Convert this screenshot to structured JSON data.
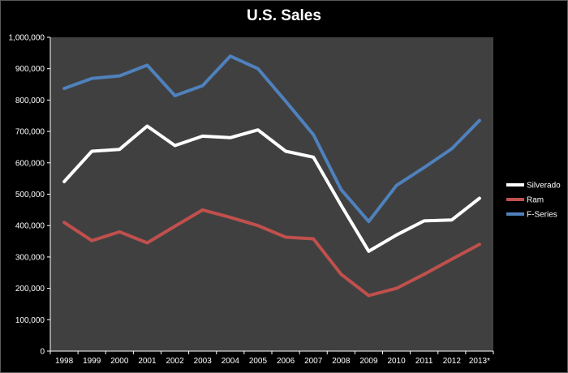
{
  "chart_data": {
    "type": "line",
    "title": "U.S. Sales",
    "xlabel": "",
    "ylabel": "",
    "categories": [
      "1998",
      "1999",
      "2000",
      "2001",
      "2002",
      "2003",
      "2004",
      "2005",
      "2006",
      "2007",
      "2008",
      "2009",
      "2010",
      "2011",
      "2012",
      "2013*"
    ],
    "ylim": [
      0,
      1000000
    ],
    "yticks": [
      "0",
      "100,000",
      "200,000",
      "300,000",
      "400,000",
      "500,000",
      "600,000",
      "700,000",
      "800,000",
      "900,000",
      "1,000,000"
    ],
    "ytick_values": [
      0,
      100000,
      200000,
      300000,
      400000,
      500000,
      600000,
      700000,
      800000,
      900000,
      1000000
    ],
    "grid": false,
    "legend_position": "right",
    "plot_background": "#404040",
    "series": [
      {
        "name": "Silverado",
        "color": "#ffffff",
        "values": [
          540000,
          637000,
          643000,
          717000,
          655000,
          685000,
          680000,
          705000,
          637000,
          618000,
          465000,
          318000,
          370000,
          415000,
          418000,
          487000
        ]
      },
      {
        "name": "Ram",
        "color": "#c0504d",
        "values": [
          410000,
          352000,
          380000,
          345000,
          398000,
          450000,
          426000,
          400000,
          363000,
          358000,
          245000,
          177000,
          200000,
          245000,
          293000,
          340000
        ]
      },
      {
        "name": "F-Series",
        "color": "#4f81bd",
        "values": [
          837000,
          869000,
          877000,
          911000,
          814000,
          846000,
          940000,
          900000,
          796000,
          690000,
          515000,
          413000,
          528000,
          585000,
          645000,
          735000
        ]
      }
    ]
  }
}
